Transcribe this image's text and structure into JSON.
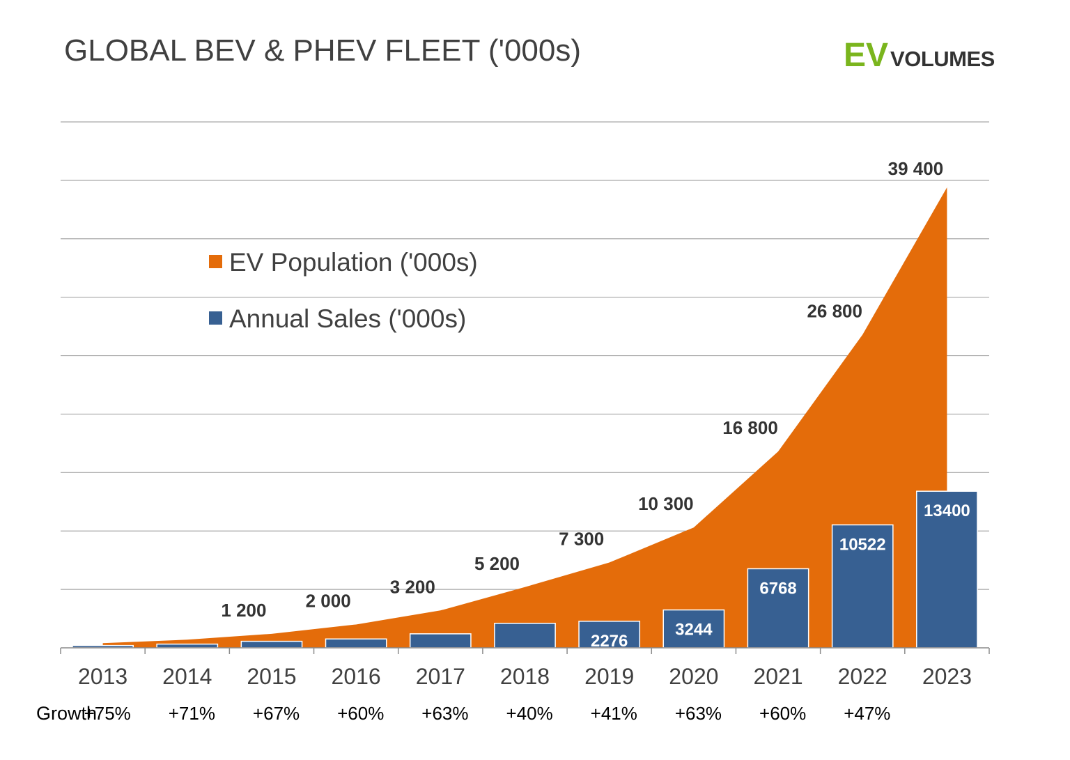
{
  "title": "GLOBAL BEV & PHEV FLEET ('000s)",
  "logo": {
    "ev": "EV",
    "volumes": "VOLUMES",
    "ev_color": "#7ab51d"
  },
  "growth_label": "Growth",
  "chart_data": {
    "type": "bar",
    "categories": [
      "2013",
      "2014",
      "2015",
      "2016",
      "2017",
      "2018",
      "2019",
      "2020",
      "2021",
      "2022",
      "2023"
    ],
    "ylim": [
      0,
      45000
    ],
    "grid": true,
    "legend_position": "top-left",
    "series": [
      {
        "name": "EV Population ('000s)",
        "type": "area",
        "color": "#e46c0a",
        "values": [
          400,
          700,
          1200,
          2000,
          3200,
          5200,
          7300,
          10300,
          16800,
          26800,
          39400
        ],
        "labels": [
          "",
          "",
          "1 200",
          "2 000",
          "3 200",
          "5 200",
          "7 300",
          "10 300",
          "16 800",
          "26 800",
          "39 400"
        ]
      },
      {
        "name": "Annual Sales ('000s)",
        "type": "bar",
        "color": "#376092",
        "values": [
          200,
          320,
          560,
          760,
          1200,
          2100,
          2276,
          3244,
          6768,
          10522,
          13400
        ],
        "labels": [
          "",
          "",
          "",
          "",
          "",
          "",
          "2276",
          "3244",
          "6768",
          "10522",
          "13400"
        ]
      }
    ],
    "growth": [
      "+75%",
      "+71%",
      "+67%",
      "+60%",
      "+63%",
      "+40%",
      "+41%",
      "+63%",
      "+60%",
      "+47%"
    ]
  }
}
